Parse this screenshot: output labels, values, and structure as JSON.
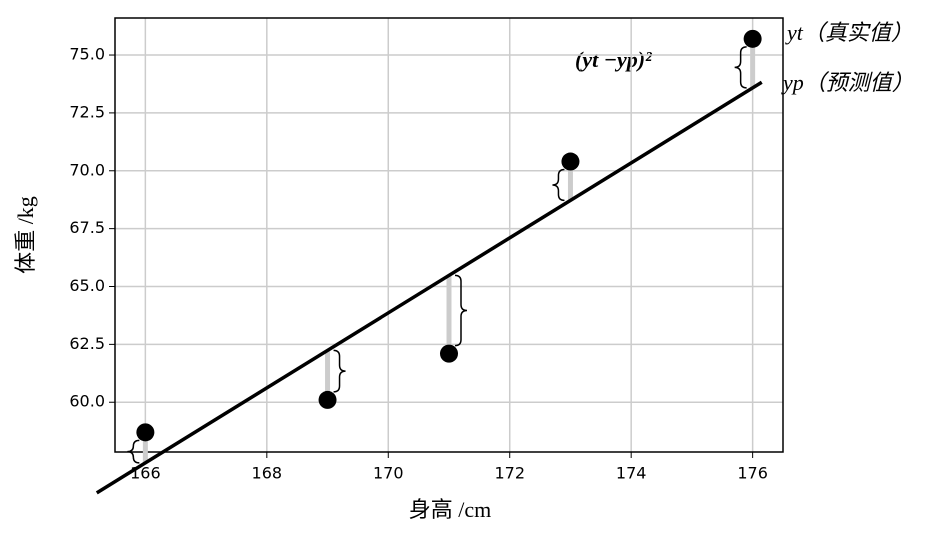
{
  "chart_data": {
    "type": "scatter",
    "x_label": "身高 /cm",
    "y_label": "体重 /kg",
    "x": [
      166,
      169,
      171,
      173,
      176
    ],
    "values": [
      58.7,
      60.1,
      62.1,
      70.4,
      75.7
    ],
    "color": "#000000",
    "line": {
      "x": [
        165.2,
        176.15
      ],
      "slope": 1.62,
      "intercept": -211.54,
      "color": "#000000"
    },
    "residual_color": "#cccccc",
    "brace_sides": [
      "left",
      "right",
      "right",
      "left",
      "left"
    ],
    "xlim": [
      165.5,
      176.5
    ],
    "xticks": [
      166,
      168,
      170,
      172,
      174,
      176
    ],
    "ylim": [
      57.85,
      76.6
    ],
    "yticks": [
      {
        "value": 60,
        "label": "60.0"
      },
      62.5,
      {
        "value": 65,
        "label": "65.0"
      },
      67.5,
      {
        "value": 70,
        "label": "70.0"
      },
      72.5,
      {
        "value": 75,
        "label": "75.0"
      }
    ],
    "grid": true,
    "annotations": {
      "residual": "(yt −yp)²",
      "actual": "yt（真实值）",
      "predicted": "yp（预测值）"
    }
  }
}
